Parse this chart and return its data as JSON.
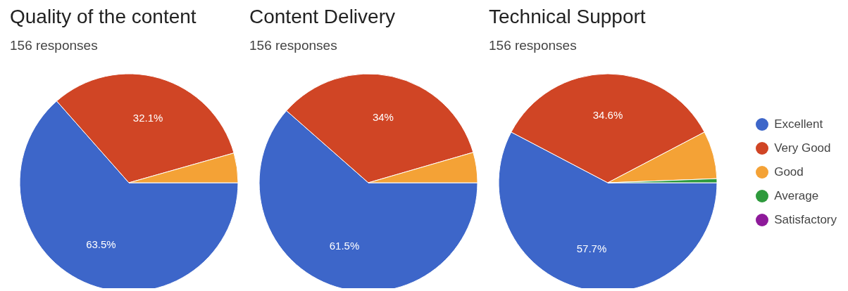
{
  "chart_data": [
    {
      "type": "pie",
      "title": "Quality of the content",
      "subtitle": "156 responses",
      "categories": [
        null,
        null,
        null,
        null,
        null
      ],
      "values": [
        63.5,
        32.1,
        4.4,
        0,
        0
      ],
      "value_labels": [
        "63.5%",
        "32.1%",
        null,
        null,
        null
      ],
      "colors": [
        "#3d66c9",
        "#d04525",
        "#f4a236",
        "#2e9a3c",
        "#8e1a9a"
      ],
      "legend": false
    },
    {
      "type": "pie",
      "title": "Content Delivery",
      "subtitle": "156 responses",
      "categories": [
        null,
        null,
        null,
        null,
        null
      ],
      "values": [
        61.5,
        34,
        4.5,
        0,
        0
      ],
      "value_labels": [
        "61.5%",
        "34%",
        null,
        null,
        null
      ],
      "colors": [
        "#3d66c9",
        "#d04525",
        "#f4a236",
        "#2e9a3c",
        "#8e1a9a"
      ],
      "legend": false
    },
    {
      "type": "pie",
      "title": "Technical Support",
      "subtitle": "156 responses",
      "categories": [
        "Excellent",
        "Very Good",
        "Good",
        "Average",
        "Satisfactory"
      ],
      "values": [
        57.7,
        34.6,
        7.1,
        0.6,
        0
      ],
      "value_labels": [
        "57.7%",
        "34.6%",
        null,
        null,
        null
      ],
      "colors": [
        "#3d66c9",
        "#d04525",
        "#f4a236",
        "#2e9a3c",
        "#8e1a9a"
      ],
      "legend": "right"
    }
  ]
}
